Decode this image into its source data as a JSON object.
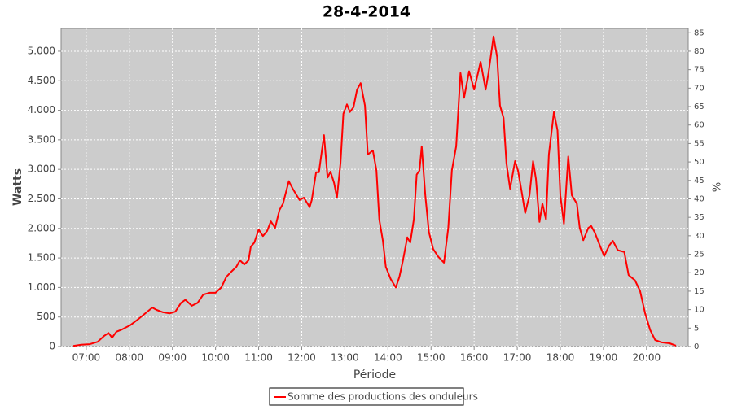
{
  "chart_data": {
    "type": "line",
    "title": "28-4-2014",
    "x_label": "Période",
    "y_label": "Watts",
    "y2_label": "%",
    "x": [
      "06:42",
      "06:53",
      "07:05",
      "07:16",
      "07:25",
      "07:31",
      "07:36",
      "07:42",
      "07:50",
      "08:01",
      "08:13",
      "08:24",
      "08:32",
      "08:38",
      "08:47",
      "08:56",
      "09:04",
      "09:12",
      "09:18",
      "09:27",
      "09:35",
      "09:43",
      "09:52",
      "10:00",
      "10:08",
      "10:15",
      "10:23",
      "10:29",
      "10:34",
      "10:40",
      "10:46",
      "10:49",
      "10:54",
      "11:00",
      "11:06",
      "11:12",
      "11:17",
      "11:23",
      "11:29",
      "11:34",
      "11:42",
      "11:48",
      "11:57",
      "12:03",
      "12:11",
      "12:14",
      "12:20",
      "12:24",
      "12:31",
      "12:36",
      "12:40",
      "12:45",
      "12:49",
      "12:54",
      "12:58",
      "13:03",
      "13:07",
      "13:12",
      "13:17",
      "13:22",
      "13:28",
      "13:32",
      "13:39",
      "13:44",
      "13:48",
      "13:53",
      "13:57",
      "14:04",
      "14:11",
      "14:16",
      "14:21",
      "14:27",
      "14:31",
      "14:36",
      "14:40",
      "14:44",
      "14:47",
      "14:52",
      "14:57",
      "15:03",
      "15:10",
      "15:18",
      "15:24",
      "15:29",
      "15:35",
      "15:41",
      "15:46",
      "15:53",
      "16:00",
      "16:09",
      "16:16",
      "16:20",
      "16:27",
      "16:32",
      "16:36",
      "16:41",
      "16:45",
      "16:50",
      "16:57",
      "17:01",
      "17:06",
      "17:11",
      "17:17",
      "17:22",
      "17:26",
      "17:31",
      "17:35",
      "17:40",
      "17:44",
      "17:51",
      "17:56",
      "18:00",
      "18:05",
      "18:11",
      "18:16",
      "18:23",
      "18:27",
      "18:32",
      "18:39",
      "18:43",
      "18:48",
      "18:55",
      "19:01",
      "19:08",
      "19:13",
      "19:20",
      "19:29",
      "19:35",
      "19:44",
      "19:51",
      "19:58",
      "20:05",
      "20:12",
      "20:21",
      "20:32",
      "20:41"
    ],
    "series": [
      {
        "name": "Somme des productions des onduleurs",
        "color": "#ff0000",
        "values": [
          10,
          30,
          40,
          80,
          180,
          230,
          150,
          250,
          290,
          360,
          470,
          580,
          660,
          620,
          580,
          560,
          590,
          740,
          790,
          690,
          740,
          880,
          910,
          910,
          1000,
          1180,
          1280,
          1350,
          1460,
          1390,
          1460,
          1690,
          1760,
          1980,
          1870,
          1960,
          2120,
          2010,
          2310,
          2420,
          2800,
          2660,
          2480,
          2520,
          2360,
          2480,
          2950,
          2950,
          3580,
          2860,
          2960,
          2770,
          2520,
          3110,
          3940,
          4100,
          3970,
          4050,
          4350,
          4460,
          4080,
          3250,
          3320,
          2980,
          2150,
          1790,
          1350,
          1140,
          1000,
          1180,
          1460,
          1850,
          1760,
          2150,
          2910,
          2980,
          3390,
          2560,
          1940,
          1650,
          1520,
          1420,
          2010,
          2980,
          3390,
          4630,
          4210,
          4660,
          4350,
          4820,
          4350,
          4630,
          5250,
          4900,
          4080,
          3870,
          3110,
          2670,
          3140,
          2980,
          2630,
          2260,
          2560,
          3140,
          2840,
          2110,
          2420,
          2150,
          3250,
          3970,
          3660,
          2560,
          2080,
          3220,
          2560,
          2420,
          2010,
          1800,
          2010,
          2040,
          1930,
          1710,
          1530,
          1710,
          1790,
          1630,
          1600,
          1210,
          1120,
          940,
          560,
          280,
          110,
          70,
          55,
          15
        ]
      }
    ],
    "xlim": [
      "06:25",
      "20:58"
    ],
    "xticks": [
      "07:00",
      "08:00",
      "09:00",
      "10:00",
      "11:00",
      "12:00",
      "13:00",
      "14:00",
      "15:00",
      "16:00",
      "17:00",
      "18:00",
      "19:00",
      "20:00"
    ],
    "ylim": [
      0,
      5385
    ],
    "yticks": [
      0,
      500,
      {
        "value": 1000,
        "label": "1.000"
      },
      {
        "value": 1500,
        "label": "1.500"
      },
      {
        "value": 2000,
        "label": "2.000"
      },
      {
        "value": 2500,
        "label": "2.500"
      },
      {
        "value": 3000,
        "label": "3.000"
      },
      {
        "value": 3500,
        "label": "3.500"
      },
      {
        "value": 4000,
        "label": "4.000"
      },
      {
        "value": 4500,
        "label": "4.500"
      },
      {
        "value": 5000,
        "label": "5.000"
      }
    ],
    "y2lim": [
      0,
      86.16
    ],
    "y2ticks": [
      0,
      5,
      10,
      15,
      20,
      25,
      30,
      35,
      40,
      45,
      50,
      55,
      60,
      65,
      70,
      75,
      80,
      85
    ],
    "grid": true
  }
}
